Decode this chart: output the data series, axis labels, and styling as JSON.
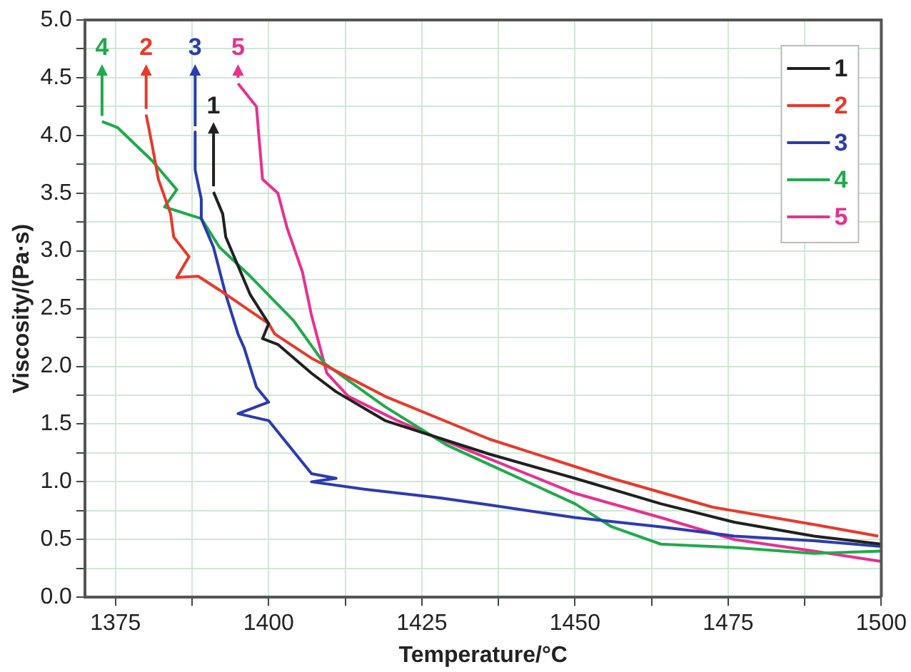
{
  "chart_data": {
    "type": "line",
    "xlabel": "Temperature/°C",
    "ylabel": "Viscosity/(Pa·s)",
    "xlim": [
      1370,
      1500
    ],
    "xticks": [
      1375,
      {
        "value": 1387.5,
        "label": null
      },
      1400,
      {
        "value": 1412.5,
        "label": null
      },
      1425,
      {
        "value": 1437.5,
        "label": null
      },
      1450,
      {
        "value": 1462.5,
        "label": null
      },
      1475,
      {
        "value": 1487.5,
        "label": null
      },
      1500
    ],
    "ylim": [
      0,
      5
    ],
    "yticks": [
      "0.0",
      {
        "value": 0.25,
        "label": null
      },
      {
        "value": 0.5,
        "label": "0.5"
      },
      {
        "value": 0.75,
        "label": null
      },
      {
        "value": 1,
        "label": "1.0"
      },
      {
        "value": 1.25,
        "label": null
      },
      {
        "value": 1.5,
        "label": "1.5"
      },
      {
        "value": 1.75,
        "label": null
      },
      {
        "value": 2,
        "label": "2.0"
      },
      {
        "value": 2.25,
        "label": null
      },
      {
        "value": 2.5,
        "label": "2.5"
      },
      {
        "value": 2.75,
        "label": null
      },
      {
        "value": 3,
        "label": "3.0"
      },
      {
        "value": 3.25,
        "label": null
      },
      {
        "value": 3.5,
        "label": "3.5"
      },
      {
        "value": 3.75,
        "label": null
      },
      {
        "value": 4,
        "label": "4.0"
      },
      {
        "value": 4.25,
        "label": null
      },
      {
        "value": 4.5,
        "label": "4.5"
      },
      {
        "value": 4.75,
        "label": null
      },
      {
        "value": 5,
        "label": "5.0"
      }
    ],
    "grid": true,
    "legend": "top right",
    "marker": "none",
    "line_style": "solid",
    "series": [
      {
        "name": "1",
        "color": "#202020",
        "x": [
          1391,
          1392.5,
          1393,
          1395,
          1397,
          1400,
          1399,
          1401.5,
          1407,
          1411,
          1419,
          1436,
          1450,
          1464,
          1476,
          1489,
          1500
        ],
        "values": [
          3.51,
          3.32,
          3.12,
          2.87,
          2.62,
          2.37,
          2.24,
          2.19,
          1.94,
          1.78,
          1.53,
          1.24,
          1.03,
          0.81,
          0.65,
          0.53,
          0.46
        ]
      },
      {
        "name": "2",
        "color": "#e8392b",
        "x": [
          1380,
          1381,
          1382,
          1384,
          1384.5,
          1387,
          1385,
          1388.5,
          1392,
          1400,
          1401,
          1407,
          1419,
          1436,
          1456,
          1472.5,
          1489,
          1499.5
        ],
        "values": [
          4.18,
          3.91,
          3.62,
          3.32,
          3.12,
          2.95,
          2.77,
          2.78,
          2.66,
          2.37,
          2.28,
          2.07,
          1.74,
          1.37,
          1.03,
          0.78,
          0.63,
          0.53
        ]
      },
      {
        "name": "3",
        "color": "#2b3bb0",
        "x": [
          1388,
          1388,
          1389,
          1389,
          1391,
          1393,
          1395,
          1396,
          1398,
          1400,
          1395,
          1400,
          1407,
          1411,
          1407,
          1415,
          1428,
          1436,
          1450,
          1464,
          1476,
          1489,
          1500
        ],
        "values": [
          4.03,
          3.7,
          3.45,
          3.28,
          3.03,
          2.62,
          2.28,
          2.16,
          1.82,
          1.69,
          1.59,
          1.53,
          1.07,
          1.03,
          1.0,
          0.94,
          0.86,
          0.8,
          0.69,
          0.61,
          0.53,
          0.49,
          0.44
        ]
      },
      {
        "name": "4",
        "color": "#1faa4a",
        "x": [
          1372.8,
          1375.3,
          1381,
          1385,
          1383,
          1389,
          1392,
          1397,
          1404,
          1409,
          1419,
          1429,
          1436,
          1450,
          1456,
          1464,
          1476,
          1489,
          1500
        ],
        "values": [
          4.12,
          4.07,
          3.78,
          3.53,
          3.38,
          3.28,
          3.03,
          2.78,
          2.4,
          2.03,
          1.65,
          1.32,
          1.15,
          0.81,
          0.61,
          0.46,
          0.43,
          0.38,
          0.4
        ]
      },
      {
        "name": "5",
        "color": "#e8308f",
        "x": [
          1395,
          1398,
          1399,
          1401.5,
          1403,
          1405.5,
          1407,
          1408,
          1409.5,
          1413,
          1421,
          1428,
          1450,
          1464,
          1476,
          1489,
          1500
        ],
        "values": [
          4.45,
          4.25,
          3.62,
          3.5,
          3.2,
          2.82,
          2.44,
          2.24,
          1.94,
          1.74,
          1.53,
          1.37,
          0.9,
          0.69,
          0.5,
          0.4,
          0.31
        ]
      }
    ],
    "annotations": [
      "1",
      "2",
      "3",
      "4",
      "5"
    ]
  }
}
